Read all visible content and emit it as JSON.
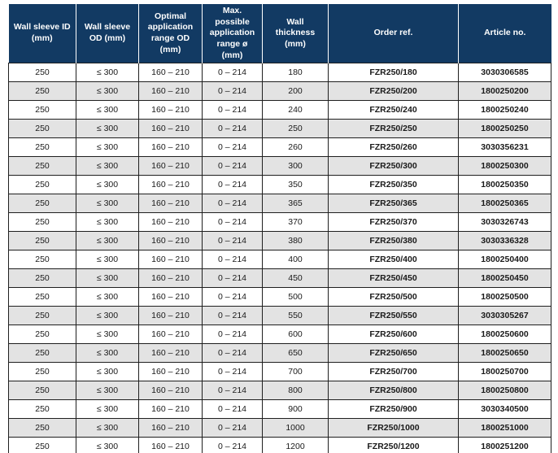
{
  "colors": {
    "header_bg": "#123a63",
    "header_text": "#ffffff",
    "row_bg": "#ffffff",
    "row_alt_bg": "#e3e3e3",
    "border": "#1f1f1f",
    "body_text": "#1a1a1a"
  },
  "table": {
    "columns": [
      "Wall sleeve ID (mm)",
      "Wall sleeve OD (mm)",
      "Optimal application range OD (mm)",
      "Max. possible application range ø (mm)",
      "Wall thickness (mm)",
      "Order ref.",
      "Article no."
    ],
    "rows": [
      [
        "250",
        "≤ 300",
        "160 – 210",
        "0 – 214",
        "180",
        "FZR250/180",
        "3030306585"
      ],
      [
        "250",
        "≤ 300",
        "160 – 210",
        "0 – 214",
        "200",
        "FZR250/200",
        "1800250200"
      ],
      [
        "250",
        "≤ 300",
        "160 – 210",
        "0 – 214",
        "240",
        "FZR250/240",
        "1800250240"
      ],
      [
        "250",
        "≤ 300",
        "160 – 210",
        "0 – 214",
        "250",
        "FZR250/250",
        "1800250250"
      ],
      [
        "250",
        "≤ 300",
        "160 – 210",
        "0 – 214",
        "260",
        "FZR250/260",
        "3030356231"
      ],
      [
        "250",
        "≤ 300",
        "160 – 210",
        "0 – 214",
        "300",
        "FZR250/300",
        "1800250300"
      ],
      [
        "250",
        "≤ 300",
        "160 – 210",
        "0 – 214",
        "350",
        "FZR250/350",
        "1800250350"
      ],
      [
        "250",
        "≤ 300",
        "160 – 210",
        "0 – 214",
        "365",
        "FZR250/365",
        "1800250365"
      ],
      [
        "250",
        "≤ 300",
        "160 – 210",
        "0 – 214",
        "370",
        "FZR250/370",
        "3030326743"
      ],
      [
        "250",
        "≤ 300",
        "160 – 210",
        "0 – 214",
        "380",
        "FZR250/380",
        "3030336328"
      ],
      [
        "250",
        "≤ 300",
        "160 – 210",
        "0 – 214",
        "400",
        "FZR250/400",
        "1800250400"
      ],
      [
        "250",
        "≤ 300",
        "160 – 210",
        "0 – 214",
        "450",
        "FZR250/450",
        "1800250450"
      ],
      [
        "250",
        "≤ 300",
        "160 – 210",
        "0 – 214",
        "500",
        "FZR250/500",
        "1800250500"
      ],
      [
        "250",
        "≤ 300",
        "160 – 210",
        "0 – 214",
        "550",
        "FZR250/550",
        "3030305267"
      ],
      [
        "250",
        "≤ 300",
        "160 – 210",
        "0 – 214",
        "600",
        "FZR250/600",
        "1800250600"
      ],
      [
        "250",
        "≤ 300",
        "160 – 210",
        "0 – 214",
        "650",
        "FZR250/650",
        "1800250650"
      ],
      [
        "250",
        "≤ 300",
        "160 – 210",
        "0 – 214",
        "700",
        "FZR250/700",
        "1800250700"
      ],
      [
        "250",
        "≤ 300",
        "160 – 210",
        "0 – 214",
        "800",
        "FZR250/800",
        "1800250800"
      ],
      [
        "250",
        "≤ 300",
        "160 – 210",
        "0 – 214",
        "900",
        "FZR250/900",
        "3030340500"
      ],
      [
        "250",
        "≤ 300",
        "160 – 210",
        "0 – 214",
        "1000",
        "FZR250/1000",
        "1800251000"
      ],
      [
        "250",
        "≤ 300",
        "160 – 210",
        "0 – 214",
        "1200",
        "FZR250/1200",
        "1800251200"
      ]
    ],
    "bold_column_indexes": [
      5,
      6
    ]
  }
}
